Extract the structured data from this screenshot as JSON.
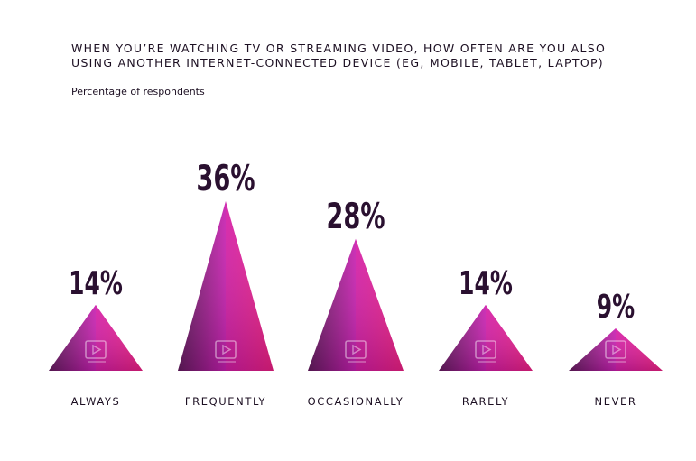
{
  "title": "When you’re watching TV or streaming video, how often are you also using another internet-connected device (eg, mobile, tablet, laptop)",
  "subtitle": "Percentage of respondents",
  "chart_data": {
    "type": "bar",
    "categories": [
      "ALWAYS",
      "FREQUENTLY",
      "OCCASIONALLY",
      "RARELY",
      "NEVER"
    ],
    "values": [
      14,
      36,
      28,
      14,
      9
    ],
    "value_labels": [
      "14%",
      "36%",
      "28%",
      "14%",
      "9%"
    ],
    "unit": "%",
    "ylim": [
      0,
      36
    ],
    "grid": false,
    "legend": "none",
    "mark_shape": "triangle",
    "colors": {
      "dark": "#5a1a55",
      "mid": "#cc1fb4",
      "bright": "#ee1e8c",
      "label": "#2a1030"
    },
    "icon": "play-button-icon"
  }
}
